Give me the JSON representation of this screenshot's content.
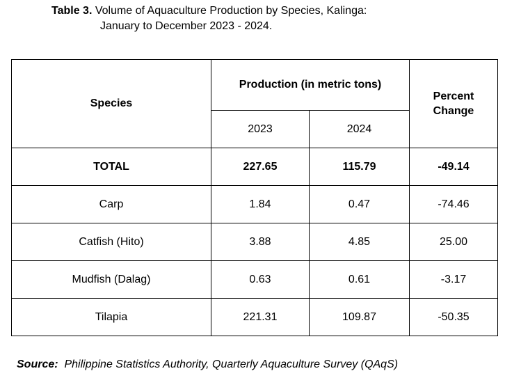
{
  "caption": {
    "label": "Table 3.",
    "title_line1": " Volume of Aquaculture Production by Species, Kalinga:",
    "title_line2": "January to December 2023 - 2024."
  },
  "table": {
    "header": {
      "species": "Species",
      "production": "Production (in metric tons)",
      "year1": "2023",
      "year2": "2024",
      "percent_line1": "Percent",
      "percent_line2": "Change"
    },
    "rows": [
      {
        "name": "TOTAL",
        "y2023": "227.65",
        "y2024": "115.79",
        "change": "-49.14"
      },
      {
        "name": "Carp",
        "y2023": "1.84",
        "y2024": "0.47",
        "change": "-74.46"
      },
      {
        "name": "Catfish (Hito)",
        "y2023": "3.88",
        "y2024": "4.85",
        "change": "25.00"
      },
      {
        "name": "Mudfish (Dalag)",
        "y2023": "0.63",
        "y2024": "0.61",
        "change": "-3.17"
      },
      {
        "name": "Tilapia",
        "y2023": "221.31",
        "y2024": "109.87",
        "change": "-50.35"
      }
    ]
  },
  "source": {
    "label": "Source:",
    "text": "Philippine Statistics Authority, Quarterly Aquaculture Survey (QAqS)"
  }
}
